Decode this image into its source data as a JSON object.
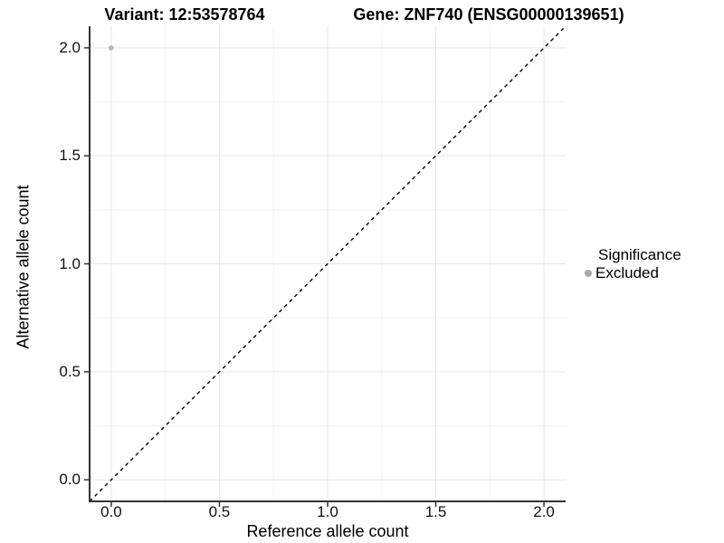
{
  "chart_data": {
    "type": "scatter",
    "title_left": "Variant: 12:53578764",
    "title_right": "Gene: ZNF740 (ENSG00000139651)",
    "xlabel": "Reference allele count",
    "ylabel": "Alternative allele count",
    "xlim": [
      -0.1,
      2.1
    ],
    "ylim": [
      -0.1,
      2.1
    ],
    "x_ticks": {
      "values": [
        0,
        0.5,
        1,
        1.5,
        2
      ],
      "labels": [
        "0.0",
        "0.5",
        "1.0",
        "1.5",
        "2.0"
      ]
    },
    "y_ticks": {
      "values": [
        0,
        0.5,
        1,
        1.5,
        2
      ],
      "labels": [
        "0.0",
        "0.5",
        "1.0",
        "1.5",
        "2.0"
      ]
    },
    "minor_tick_values": [
      0.25,
      0.75,
      1.25,
      1.75
    ],
    "grid": {
      "major_color": "#e7e7e7",
      "minor_color": "#f4f4f4",
      "background": "#ffffff"
    },
    "axis_line_color": "#333333",
    "tick_mark_color": "#333333",
    "identity_line": {
      "style": "dashed",
      "color": "#000000",
      "from": {
        "x": -0.1,
        "y": -0.1
      },
      "to": {
        "x": 2.1,
        "y": 2.1
      }
    },
    "series": [
      {
        "name": "Excluded",
        "color": "#b8b8b8",
        "points": [
          {
            "x": 0,
            "y": 2
          }
        ]
      }
    ],
    "legend": {
      "title": "Significance",
      "position": "right",
      "items": [
        {
          "label": "Excluded",
          "color": "#a9a9a9",
          "marker": "circle"
        }
      ]
    }
  }
}
